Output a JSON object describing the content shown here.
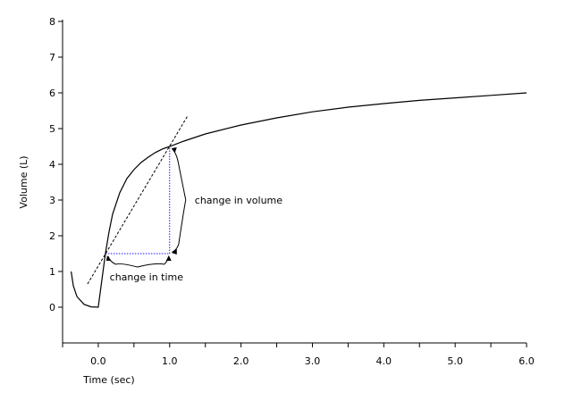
{
  "chart_data": {
    "type": "line",
    "title": "",
    "xlabel": "Time (sec)",
    "ylabel": "Volume (L)",
    "xlim": [
      -0.5,
      6.0
    ],
    "ylim": [
      -1.0,
      8.0
    ],
    "x_ticks": [
      -0.5,
      0.0,
      0.5,
      1.0,
      1.5,
      2.0,
      2.5,
      3.0,
      3.5,
      4.0,
      4.5,
      5.0,
      5.5,
      6.0
    ],
    "x_tick_labels": [
      {
        "value": 0.0,
        "text": "0.0"
      },
      {
        "value": 1.0,
        "text": "1.0"
      },
      {
        "value": 2.0,
        "text": "2.0"
      },
      {
        "value": 3.0,
        "text": "3.0"
      },
      {
        "value": 4.0,
        "text": "4.0"
      },
      {
        "value": 5.0,
        "text": "5.0"
      },
      {
        "value": 6.0,
        "text": "6.0"
      }
    ],
    "y_ticks": [
      0,
      1,
      2,
      3,
      4,
      5,
      6,
      7,
      8
    ],
    "y_tick_labels": [
      "0",
      "1",
      "2",
      "3",
      "4",
      "5",
      "6",
      "7",
      "8"
    ],
    "series": [
      {
        "x": [
          -0.38,
          -0.35,
          -0.3,
          -0.2,
          -0.1,
          0.0,
          0.05,
          0.1,
          0.15,
          0.2,
          0.3,
          0.4,
          0.5,
          0.6,
          0.7,
          0.8,
          0.9,
          1.0,
          1.2,
          1.5,
          2.0,
          2.5,
          3.0,
          3.5,
          4.0,
          4.5,
          5.0,
          5.5,
          6.0
        ],
        "y": [
          1.0,
          0.6,
          0.3,
          0.08,
          0.01,
          0.0,
          0.75,
          1.5,
          2.1,
          2.6,
          3.2,
          3.6,
          3.85,
          4.05,
          4.2,
          4.33,
          4.43,
          4.5,
          4.65,
          4.85,
          5.1,
          5.3,
          5.47,
          5.6,
          5.7,
          5.79,
          5.86,
          5.93,
          6.0
        ]
      }
    ],
    "tangent_line": {
      "x": [
        -0.15,
        1.25
      ],
      "y": [
        0.65,
        5.35
      ]
    },
    "delta_points": {
      "x1": 0.1,
      "y1": 1.5,
      "x2": 1.0,
      "y2": 4.5
    },
    "annotations": {
      "change_in_volume": "change in volume",
      "change_in_time": "change in time"
    }
  }
}
